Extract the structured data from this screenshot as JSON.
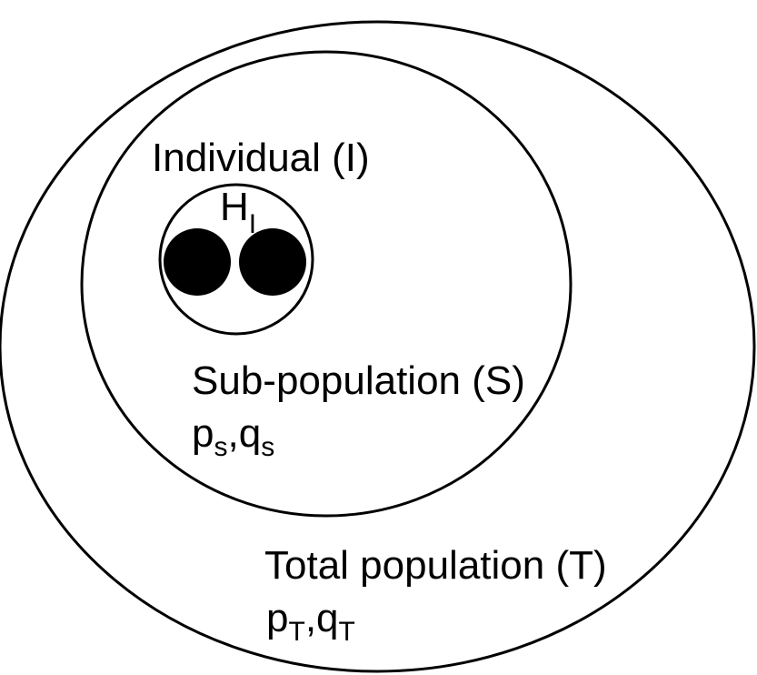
{
  "colors": {
    "stroke": "#000000",
    "background": "#ffffff",
    "allele_fill": "#000000"
  },
  "individual": {
    "label": "Individual (I)",
    "heterozygosity": {
      "main": "H",
      "sub": "I"
    }
  },
  "subpopulation": {
    "label": "Sub-population (S)",
    "freqs": {
      "p": "p",
      "p_sub": "s",
      "sep": ",",
      "q": "q",
      "q_sub": "s"
    }
  },
  "total": {
    "label": "Total population (T)",
    "freqs": {
      "p": "p",
      "p_sub": "T",
      "sep": ",",
      "q": "q",
      "q_sub": "T"
    }
  }
}
